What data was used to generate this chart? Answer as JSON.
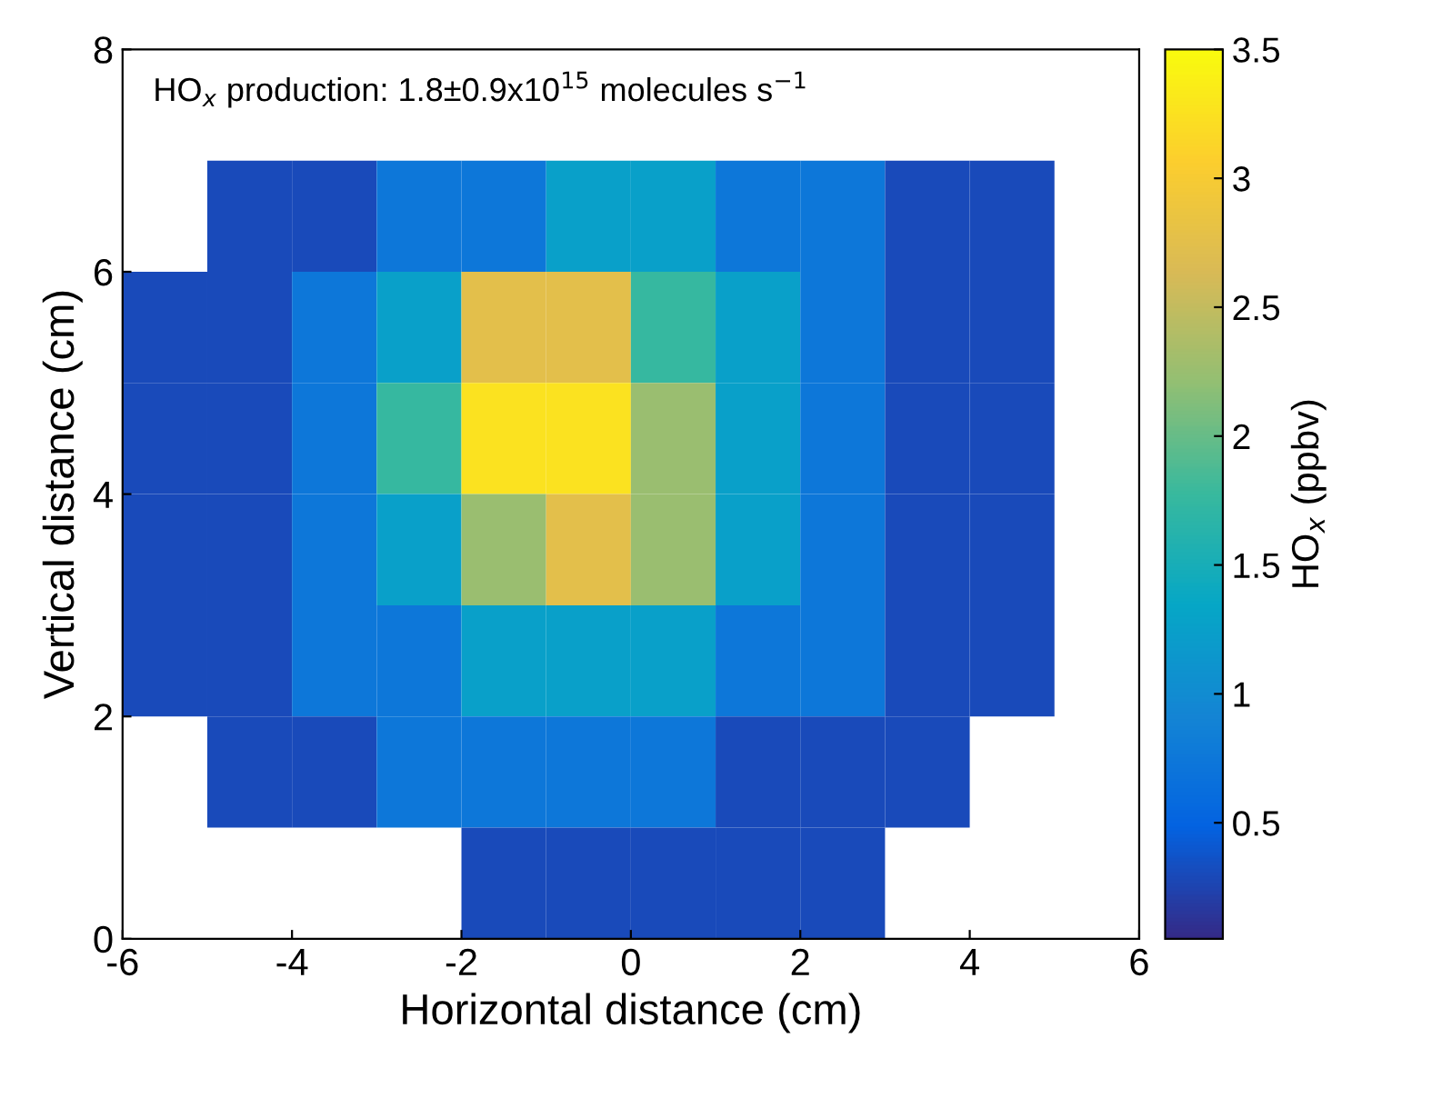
{
  "chart_data": {
    "type": "heatmap",
    "xlabel": "Horizontal distance (cm)",
    "ylabel": "Vertical distance (cm)",
    "clabel": "HO$_{x}$ (ppbv)",
    "annotations": [
      "HO$_{x}$ production: 1.8±0.9x10$^{15}$ molecules s$^{−1}$"
    ],
    "x": [
      -5.5,
      -4.5,
      -3.5,
      -2.5,
      -1.5,
      -0.5,
      0.5,
      1.5,
      2.5,
      3.5,
      4.5
    ],
    "y": [
      6.5,
      5.5,
      4.5,
      3.5,
      2.5,
      1.5,
      0.5
    ],
    "cells": [
      [
        null,
        0.3,
        0.3,
        0.75,
        0.75,
        1.25,
        1.25,
        0.75,
        0.75,
        0.3,
        0.3
      ],
      [
        0.3,
        0.3,
        0.75,
        1.25,
        2.75,
        2.75,
        1.75,
        1.25,
        0.75,
        0.3,
        0.3
      ],
      [
        0.3,
        0.3,
        0.75,
        1.75,
        3.25,
        3.25,
        2.25,
        1.25,
        0.75,
        0.3,
        0.3
      ],
      [
        0.3,
        0.3,
        0.75,
        1.25,
        2.25,
        2.75,
        2.25,
        1.25,
        0.75,
        0.3,
        0.3
      ],
      [
        0.3,
        0.3,
        0.75,
        0.75,
        1.25,
        1.25,
        1.25,
        0.75,
        0.75,
        0.3,
        0.3
      ],
      [
        null,
        0.3,
        0.3,
        0.75,
        0.75,
        0.75,
        0.75,
        0.3,
        0.3,
        0.3,
        null
      ],
      [
        null,
        null,
        null,
        null,
        0.3,
        0.3,
        0.3,
        0.3,
        0.3,
        null,
        null
      ]
    ],
    "xlim": [
      -6,
      6
    ],
    "xticks": [
      -6,
      -4,
      -2,
      0,
      2,
      4,
      6
    ],
    "ylim": [
      0,
      8
    ],
    "yticks": [
      0,
      2,
      4,
      6,
      8
    ],
    "clim": [
      0.05,
      3.5
    ],
    "cticks": [
      0.5,
      1,
      1.5,
      2,
      2.5,
      3,
      3.5
    ],
    "grid": false
  }
}
